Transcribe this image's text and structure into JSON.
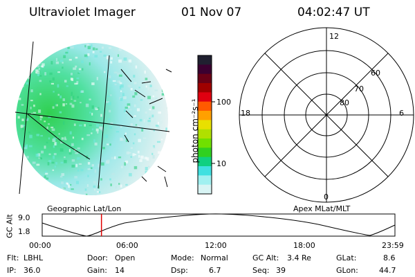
{
  "header": {
    "instrument": "Ultraviolet Imager",
    "date": "01 Nov 07",
    "time": "04:02:47 UT"
  },
  "colorbar": {
    "unit_label": "photon cm⁻²s⁻¹",
    "ticks": [
      "100",
      "10"
    ],
    "colors": [
      "#202030",
      "#3b0030",
      "#6a0016",
      "#a00000",
      "#e00010",
      "#ff5a00",
      "#ffa000",
      "#e8e000",
      "#b0e000",
      "#70e000",
      "#30d020",
      "#10d080",
      "#40e0e0",
      "#a0f0f0",
      "#d8f4f4"
    ]
  },
  "polar": {
    "mlt_labels": {
      "top": "12",
      "left": "18",
      "right": "6",
      "bottom": "0"
    },
    "lat_labels": [
      "60",
      "70",
      "80"
    ]
  },
  "track": {
    "left_title": "Geographic Lat/Lon",
    "right_title": "Apex MLat/MLT",
    "y_axis_label": "GC Alt",
    "y_ticks": [
      "9.0",
      "1.8"
    ],
    "x_ticks": [
      "00:00",
      "06:00",
      "12:00",
      "18:00",
      "23:59"
    ],
    "marker_time_fraction": 0.168
  },
  "footer": {
    "row1": [
      {
        "label": "Flt:",
        "value": "LBHL"
      },
      {
        "label": "Door:",
        "value": "Open"
      },
      {
        "label": "Mode:",
        "value": "Normal"
      },
      {
        "label": "GC Alt:",
        "value": "3.4 Re"
      },
      {
        "label": "GLat:",
        "value": "8.6"
      }
    ],
    "row2": [
      {
        "label": "IP:",
        "value": "36.0"
      },
      {
        "label": "Gain:",
        "value": "14"
      },
      {
        "label": "Dsp:",
        "value": "6.7"
      },
      {
        "label": "Seq:",
        "value": "39"
      },
      {
        "label": "GLon:",
        "value": "44.7"
      }
    ]
  }
}
